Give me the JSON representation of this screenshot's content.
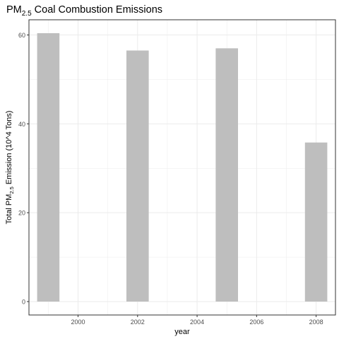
{
  "chart_data": {
    "type": "bar",
    "title": {
      "main": "PM",
      "sub": "2.5",
      "rest": " Coal Combustion Emissions"
    },
    "xlabel": "year",
    "ylabel": {
      "pre": "Total PM",
      "sub": "2.5",
      "post": " Emission (10^4 Tons)"
    },
    "x": [
      1999,
      2002,
      2005,
      2008
    ],
    "values": [
      60.4,
      56.5,
      57.0,
      35.8
    ],
    "xlim": [
      1998.35,
      2008.65
    ],
    "ylim": [
      -3.02,
      63.42
    ],
    "xticks": [
      2000,
      2002,
      2004,
      2006,
      2008
    ],
    "xtick_labels": [
      "2000",
      "2002",
      "2004",
      "2006",
      "2008"
    ],
    "yticks": [
      0,
      20,
      40,
      60
    ],
    "ytick_labels": [
      "0",
      "20",
      "40",
      "60"
    ],
    "bar_width_years": 0.75,
    "grid": true,
    "bar_color": "#bebebe",
    "grid_color": "#ebebeb",
    "panel_border_color": "#333333"
  }
}
